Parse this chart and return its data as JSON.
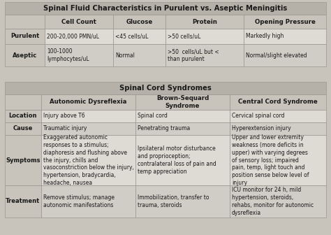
{
  "table1_title": "Spinal Fluid Characteristics in Purulent vs. Aseptic Meningitis",
  "table1_headers": [
    "",
    "Cell Count",
    "Glucose",
    "Protein",
    "Opening Pressure"
  ],
  "table1_rows": [
    [
      "Purulent",
      "200-20,000 PMN/uL",
      "<45 cells/uL",
      ">50 cells/uL",
      "Markedly high"
    ],
    [
      "Aseptic",
      "100-1000\nlymphocytes/uL",
      "Normal",
      ">50  cells/uL but <\nthan purulent",
      "Normal/slight elevated"
    ]
  ],
  "table2_title": "Spinal Cord Syndromes",
  "table2_headers": [
    "",
    "Autonomic Dysreflexia",
    "Brown-Sequard\nSyndrome",
    "Central Cord Syndrome"
  ],
  "table2_rows": [
    [
      "Location",
      "Injury above T6",
      "Spinal cord",
      "Cervical spinal cord"
    ],
    [
      "Cause",
      "Traumatic injury",
      "Penetrating trauma",
      "Hyperextension injury"
    ],
    [
      "Symptoms",
      "Exaggerated autonomic\nresponses to a stimulus;\ndiaphoresis and flushing above\nthe injury, chills and\nvasoconstriction below the injury,\nhypertension, bradycardia,\nheadache, nausea",
      "Ipsilateral motor disturbance\nand proprioception;\ncontralateral loss of pain and\ntemp appreciation",
      "Upper and lower extremity\nweakness (more deficits in\nupper) with varying degrees\nof sensory loss; impaired\npain, temp, light touch and\nposition sense below level of\ninjury"
    ],
    [
      "Treatment",
      "Remove stimulus; manage\nautonomic manifestations",
      "Immobilization, transfer to\ntrauma, steroids",
      "ICU monitor for 24 h, mild\nhypertension, steroids,\nrehabs, monitor for autonomic\ndysreflexia"
    ]
  ],
  "title_bg": "#b5b0a8",
  "header_bg": "#c8c3bb",
  "row_label_bg": "#c8c3bb",
  "row_bg_light": "#dedad4",
  "row_bg_dark": "#d0ccc6",
  "border_color": "#999690",
  "text_color": "#1a1a1a",
  "bg_color": "#c8c3bb",
  "title_fontsize": 7.2,
  "header_fontsize": 6.2,
  "cell_fontsize": 5.5,
  "label_fontsize": 6.0
}
